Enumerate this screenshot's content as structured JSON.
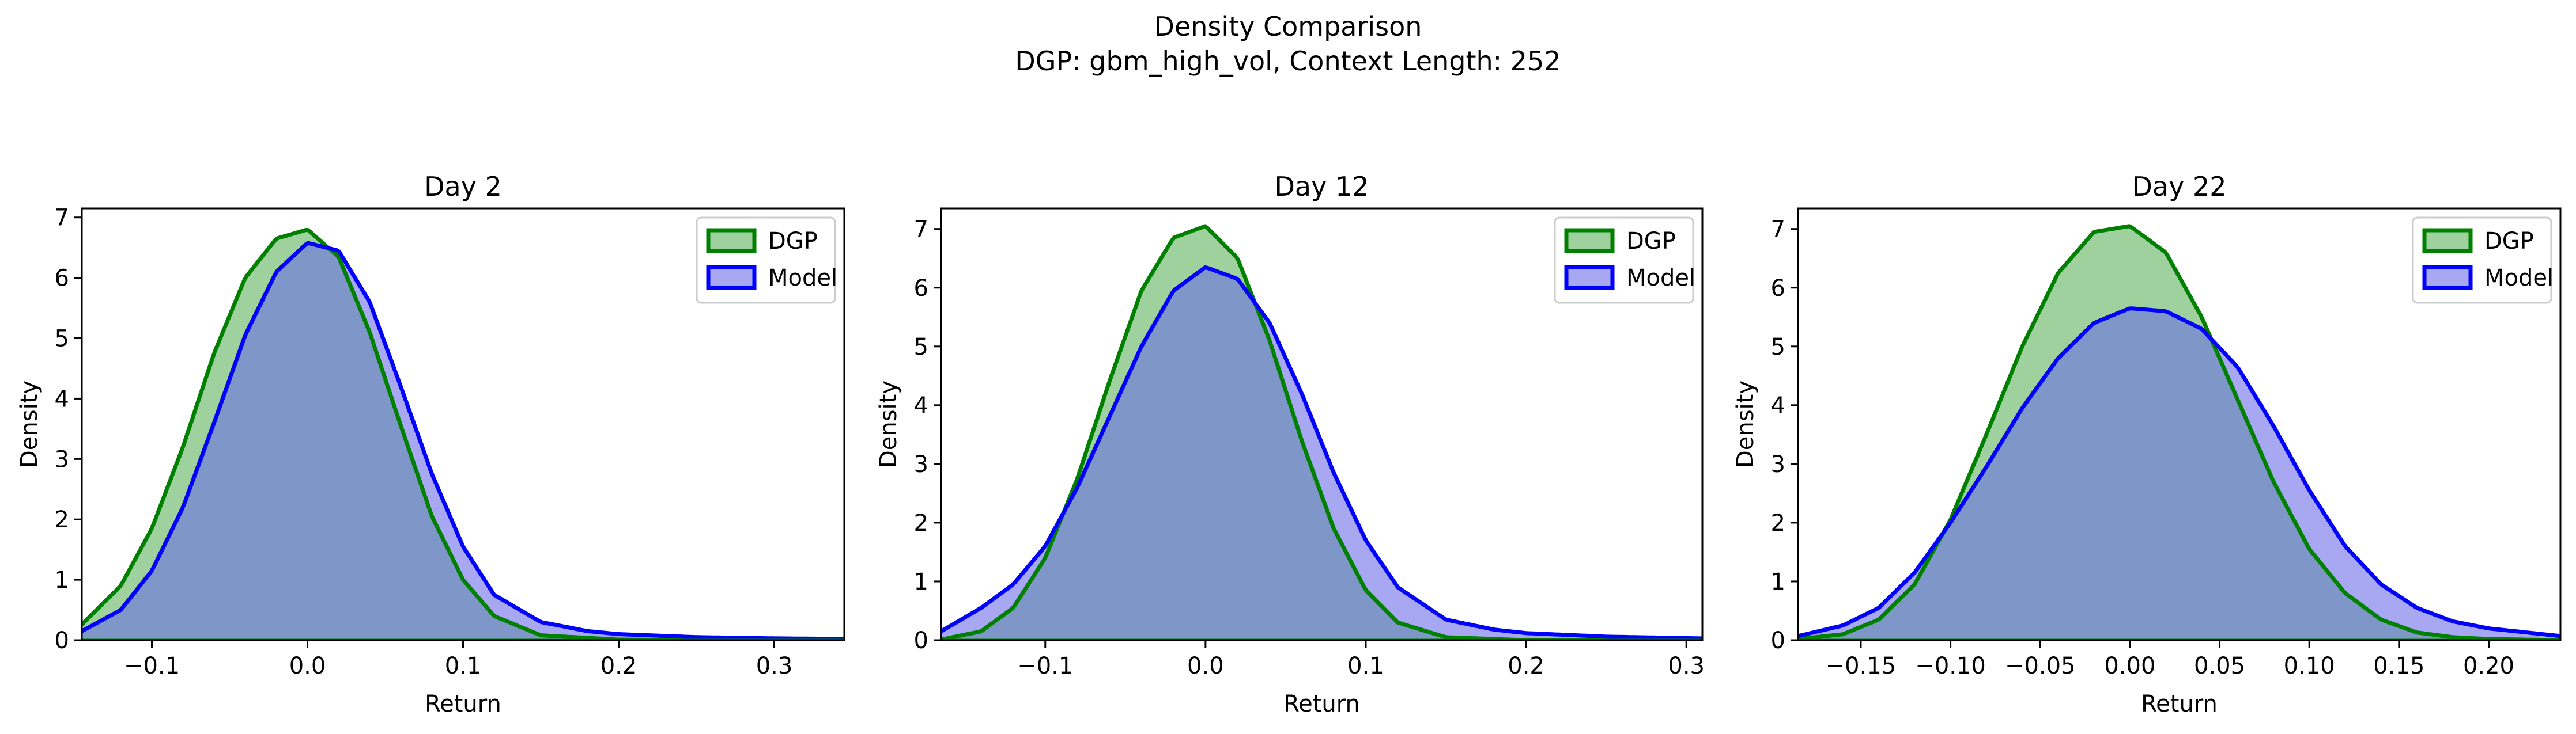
{
  "figure": {
    "title_line1": "Density Comparison",
    "title_line2": "DGP: gbm_high_vol, Context Length: 252"
  },
  "colors": {
    "dgp_line": "#008000",
    "dgp_fill": "#9fd19f",
    "model_line": "#0000ff",
    "model_fill": "#a7a7f2",
    "overlap_fill": "#7e97c8",
    "overlap_edge": "#1a5c50"
  },
  "chart_data": [
    {
      "type": "area",
      "title": "Day 2",
      "xlabel": "Return",
      "ylabel": "Density",
      "xlim": [
        -0.145,
        0.345
      ],
      "ylim": [
        0,
        7.15
      ],
      "xticks": [
        -0.1,
        0.0,
        0.1,
        0.2,
        0.3
      ],
      "xtick_labels": [
        "−0.1",
        "0.0",
        "0.1",
        "0.2",
        "0.3"
      ],
      "yticks": [
        0,
        1,
        2,
        3,
        4,
        5,
        6,
        7
      ],
      "ytick_labels": [
        "0",
        "1",
        "2",
        "3",
        "4",
        "5",
        "6",
        "7"
      ],
      "legend_position": "top-right",
      "series": [
        {
          "name": "DGP",
          "x": [
            -0.145,
            -0.12,
            -0.1,
            -0.08,
            -0.06,
            -0.04,
            -0.02,
            0.0,
            0.02,
            0.04,
            0.06,
            0.08,
            0.1,
            0.12,
            0.15,
            0.2,
            0.25,
            0.3,
            0.345
          ],
          "y": [
            0.26,
            0.9,
            1.85,
            3.2,
            4.75,
            6.0,
            6.65,
            6.8,
            6.35,
            5.1,
            3.55,
            2.05,
            1.0,
            0.4,
            0.08,
            0.01,
            0.0,
            0.0,
            0.0
          ]
        },
        {
          "name": "Model",
          "x": [
            -0.145,
            -0.12,
            -0.1,
            -0.08,
            -0.06,
            -0.04,
            -0.02,
            0.0,
            0.02,
            0.04,
            0.06,
            0.08,
            0.1,
            0.12,
            0.15,
            0.18,
            0.2,
            0.25,
            0.3,
            0.345
          ],
          "y": [
            0.15,
            0.5,
            1.15,
            2.2,
            3.6,
            5.05,
            6.1,
            6.58,
            6.45,
            5.6,
            4.2,
            2.75,
            1.55,
            0.75,
            0.3,
            0.15,
            0.1,
            0.05,
            0.03,
            0.02
          ]
        }
      ]
    },
    {
      "type": "area",
      "title": "Day 12",
      "xlabel": "Return",
      "ylabel": "Density",
      "xlim": [
        -0.165,
        0.31
      ],
      "ylim": [
        0,
        7.35
      ],
      "xticks": [
        -0.1,
        0.0,
        0.1,
        0.2,
        0.3
      ],
      "xtick_labels": [
        "−0.1",
        "0.0",
        "0.1",
        "0.2",
        "0.3"
      ],
      "yticks": [
        0,
        1,
        2,
        3,
        4,
        5,
        6,
        7
      ],
      "ytick_labels": [
        "0",
        "1",
        "2",
        "3",
        "4",
        "5",
        "6",
        "7"
      ],
      "legend_position": "top-right",
      "series": [
        {
          "name": "DGP",
          "x": [
            -0.165,
            -0.14,
            -0.12,
            -0.1,
            -0.08,
            -0.06,
            -0.04,
            -0.02,
            0.0,
            0.02,
            0.04,
            0.06,
            0.08,
            0.1,
            0.12,
            0.15,
            0.2,
            0.25,
            0.31
          ],
          "y": [
            0.01,
            0.15,
            0.55,
            1.4,
            2.75,
            4.4,
            5.95,
            6.85,
            7.05,
            6.5,
            5.1,
            3.4,
            1.9,
            0.85,
            0.3,
            0.05,
            0.0,
            0.0,
            0.0
          ]
        },
        {
          "name": "Model",
          "x": [
            -0.165,
            -0.14,
            -0.12,
            -0.1,
            -0.08,
            -0.06,
            -0.04,
            -0.02,
            0.0,
            0.02,
            0.04,
            0.06,
            0.08,
            0.1,
            0.12,
            0.15,
            0.18,
            0.2,
            0.25,
            0.31
          ],
          "y": [
            0.15,
            0.55,
            0.95,
            1.6,
            2.6,
            3.8,
            5.0,
            5.95,
            6.35,
            6.15,
            5.4,
            4.2,
            2.85,
            1.7,
            0.9,
            0.35,
            0.18,
            0.12,
            0.06,
            0.03
          ]
        }
      ]
    },
    {
      "type": "area",
      "title": "Day 22",
      "xlabel": "Return",
      "ylabel": "Density",
      "xlim": [
        -0.185,
        0.24
      ],
      "ylim": [
        0,
        7.35
      ],
      "xticks": [
        -0.15,
        -0.1,
        -0.05,
        0.0,
        0.05,
        0.1,
        0.15,
        0.2
      ],
      "xtick_labels": [
        "−0.15",
        "−0.10",
        "−0.05",
        "0.00",
        "0.05",
        "0.10",
        "0.15",
        "0.20"
      ],
      "yticks": [
        0,
        1,
        2,
        3,
        4,
        5,
        6,
        7
      ],
      "ytick_labels": [
        "0",
        "1",
        "2",
        "3",
        "4",
        "5",
        "6",
        "7"
      ],
      "legend_position": "top-right",
      "series": [
        {
          "name": "DGP",
          "x": [
            -0.185,
            -0.16,
            -0.14,
            -0.12,
            -0.1,
            -0.08,
            -0.06,
            -0.04,
            -0.02,
            0.0,
            0.02,
            0.04,
            0.06,
            0.08,
            0.1,
            0.12,
            0.14,
            0.16,
            0.18,
            0.2,
            0.24
          ],
          "y": [
            0.02,
            0.1,
            0.35,
            0.95,
            2.05,
            3.5,
            5.0,
            6.25,
            6.95,
            7.05,
            6.6,
            5.5,
            4.1,
            2.7,
            1.55,
            0.8,
            0.35,
            0.13,
            0.05,
            0.02,
            0.0
          ]
        },
        {
          "name": "Model",
          "x": [
            -0.185,
            -0.16,
            -0.14,
            -0.12,
            -0.1,
            -0.08,
            -0.06,
            -0.04,
            -0.02,
            0.0,
            0.02,
            0.04,
            0.06,
            0.08,
            0.1,
            0.12,
            0.14,
            0.16,
            0.18,
            0.2,
            0.24
          ],
          "y": [
            0.07,
            0.25,
            0.55,
            1.15,
            2.0,
            2.95,
            3.95,
            4.8,
            5.4,
            5.65,
            5.6,
            5.3,
            4.65,
            3.65,
            2.55,
            1.6,
            0.95,
            0.55,
            0.32,
            0.2,
            0.07
          ]
        }
      ]
    }
  ]
}
